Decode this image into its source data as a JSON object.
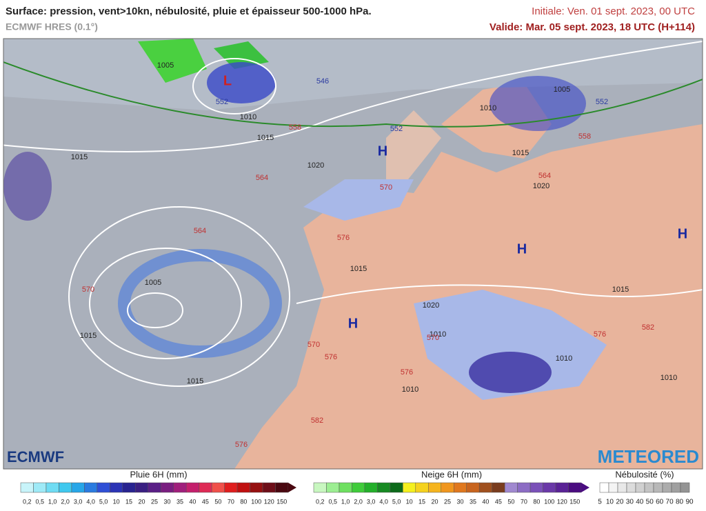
{
  "header": {
    "title": "Surface: pression, vent>10kn, nébulosité, pluie et épaisseur 500-1000 hPa.",
    "model": "ECMWF HRES (0.1°)",
    "initial": "Initiale: Ven. 01 sept. 2023, 00 UTC",
    "valid": "Valide: Mar. 05 sept. 2023, 18 UTC (H+114)"
  },
  "map": {
    "pressure_labels": [
      "1005",
      "1010",
      "1015",
      "1015",
      "1020",
      "1015",
      "1005",
      "1015",
      "1015",
      "1020",
      "1010",
      "1010",
      "1010",
      "1010",
      "1015",
      "1010",
      "1015",
      "1020",
      "1005"
    ],
    "thickness_labels": [
      "546",
      "552",
      "552",
      "552",
      "558",
      "564",
      "570",
      "576",
      "558",
      "564",
      "570",
      "576",
      "576",
      "564",
      "570",
      "576",
      "570",
      "576",
      "582",
      "582"
    ],
    "centers": [
      "H",
      "H",
      "H",
      "H",
      "L"
    ]
  },
  "logos": {
    "left": "ECMWF",
    "right": "METEORED"
  },
  "legends": [
    {
      "title": "Pluie 6H (mm)",
      "ticks": [
        "0,2",
        "0,5",
        "1,0",
        "2,0",
        "3,0",
        "4,0",
        "5,0",
        "10",
        "15",
        "20",
        "25",
        "30",
        "35",
        "40",
        "45",
        "50",
        "70",
        "80",
        "100",
        "120",
        "150"
      ],
      "colors": [
        "#c8f4fa",
        "#9eeaf7",
        "#6fdcf3",
        "#3fc8ee",
        "#27a6e8",
        "#2a7be0",
        "#2f4fd6",
        "#2b33b5",
        "#282390",
        "#3a1f82",
        "#5a1f86",
        "#7a1e80",
        "#a01f7c",
        "#c41f6c",
        "#de2a55",
        "#f0504a",
        "#e01e1e",
        "#c01010",
        "#961010",
        "#6e0e18",
        "#4a0810"
      ]
    },
    {
      "title": "Neige 6H (mm)",
      "ticks": [
        "0,2",
        "0,5",
        "1,0",
        "2,0",
        "3,0",
        "4,0",
        "5,0",
        "10",
        "15",
        "20",
        "25",
        "30",
        "35",
        "40",
        "45",
        "50",
        "70",
        "80",
        "100",
        "120",
        "150"
      ],
      "colors": [
        "#c8f7c0",
        "#9cee92",
        "#6ee060",
        "#3fcc3a",
        "#23b02a",
        "#178a22",
        "#0d6a1a",
        "#f5f01e",
        "#f5d21e",
        "#f5b41e",
        "#f0961e",
        "#e0781e",
        "#c8641e",
        "#a0501e",
        "#7a3c1e",
        "#a088d0",
        "#8c6cc4",
        "#7a50b8",
        "#6a38a8",
        "#5a2296",
        "#4a0c80"
      ]
    },
    {
      "title": "Nébulosité (%)",
      "ticks": [
        "5",
        "10",
        "20",
        "30",
        "40",
        "50",
        "60",
        "70",
        "80",
        "90"
      ],
      "colors": [
        "#ffffff",
        "#f4f4f4",
        "#e8e8e8",
        "#dcdcdc",
        "#d0d0d0",
        "#c4c4c4",
        "#b8b8b8",
        "#acacac",
        "#a0a0a0",
        "#949494"
      ]
    }
  ]
}
